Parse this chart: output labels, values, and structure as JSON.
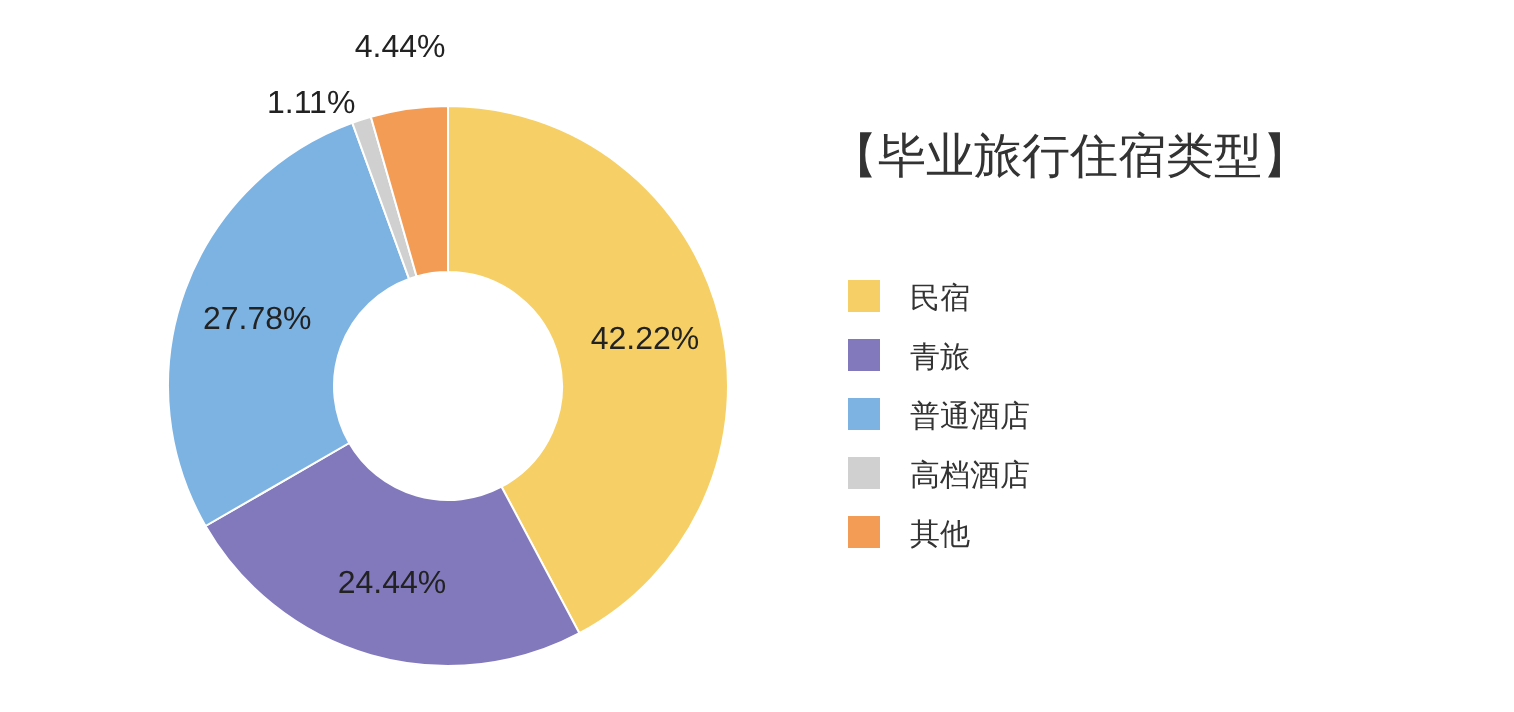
{
  "chart_data": {
    "type": "donut",
    "title": "【毕业旅行住宿类型】",
    "categories": [
      "民宿",
      "青旅",
      "普通酒店",
      "高档酒店",
      "其他"
    ],
    "values": [
      42.22,
      24.44,
      27.78,
      1.11,
      4.44
    ],
    "colors": [
      "#f6d066",
      "#8279bd",
      "#7db3e3",
      "#d0d0d0",
      "#f29c55"
    ],
    "value_labels": [
      "42.22%",
      "24.44%",
      "27.78%",
      "1.11%",
      "4.44%"
    ],
    "legend": "right"
  }
}
